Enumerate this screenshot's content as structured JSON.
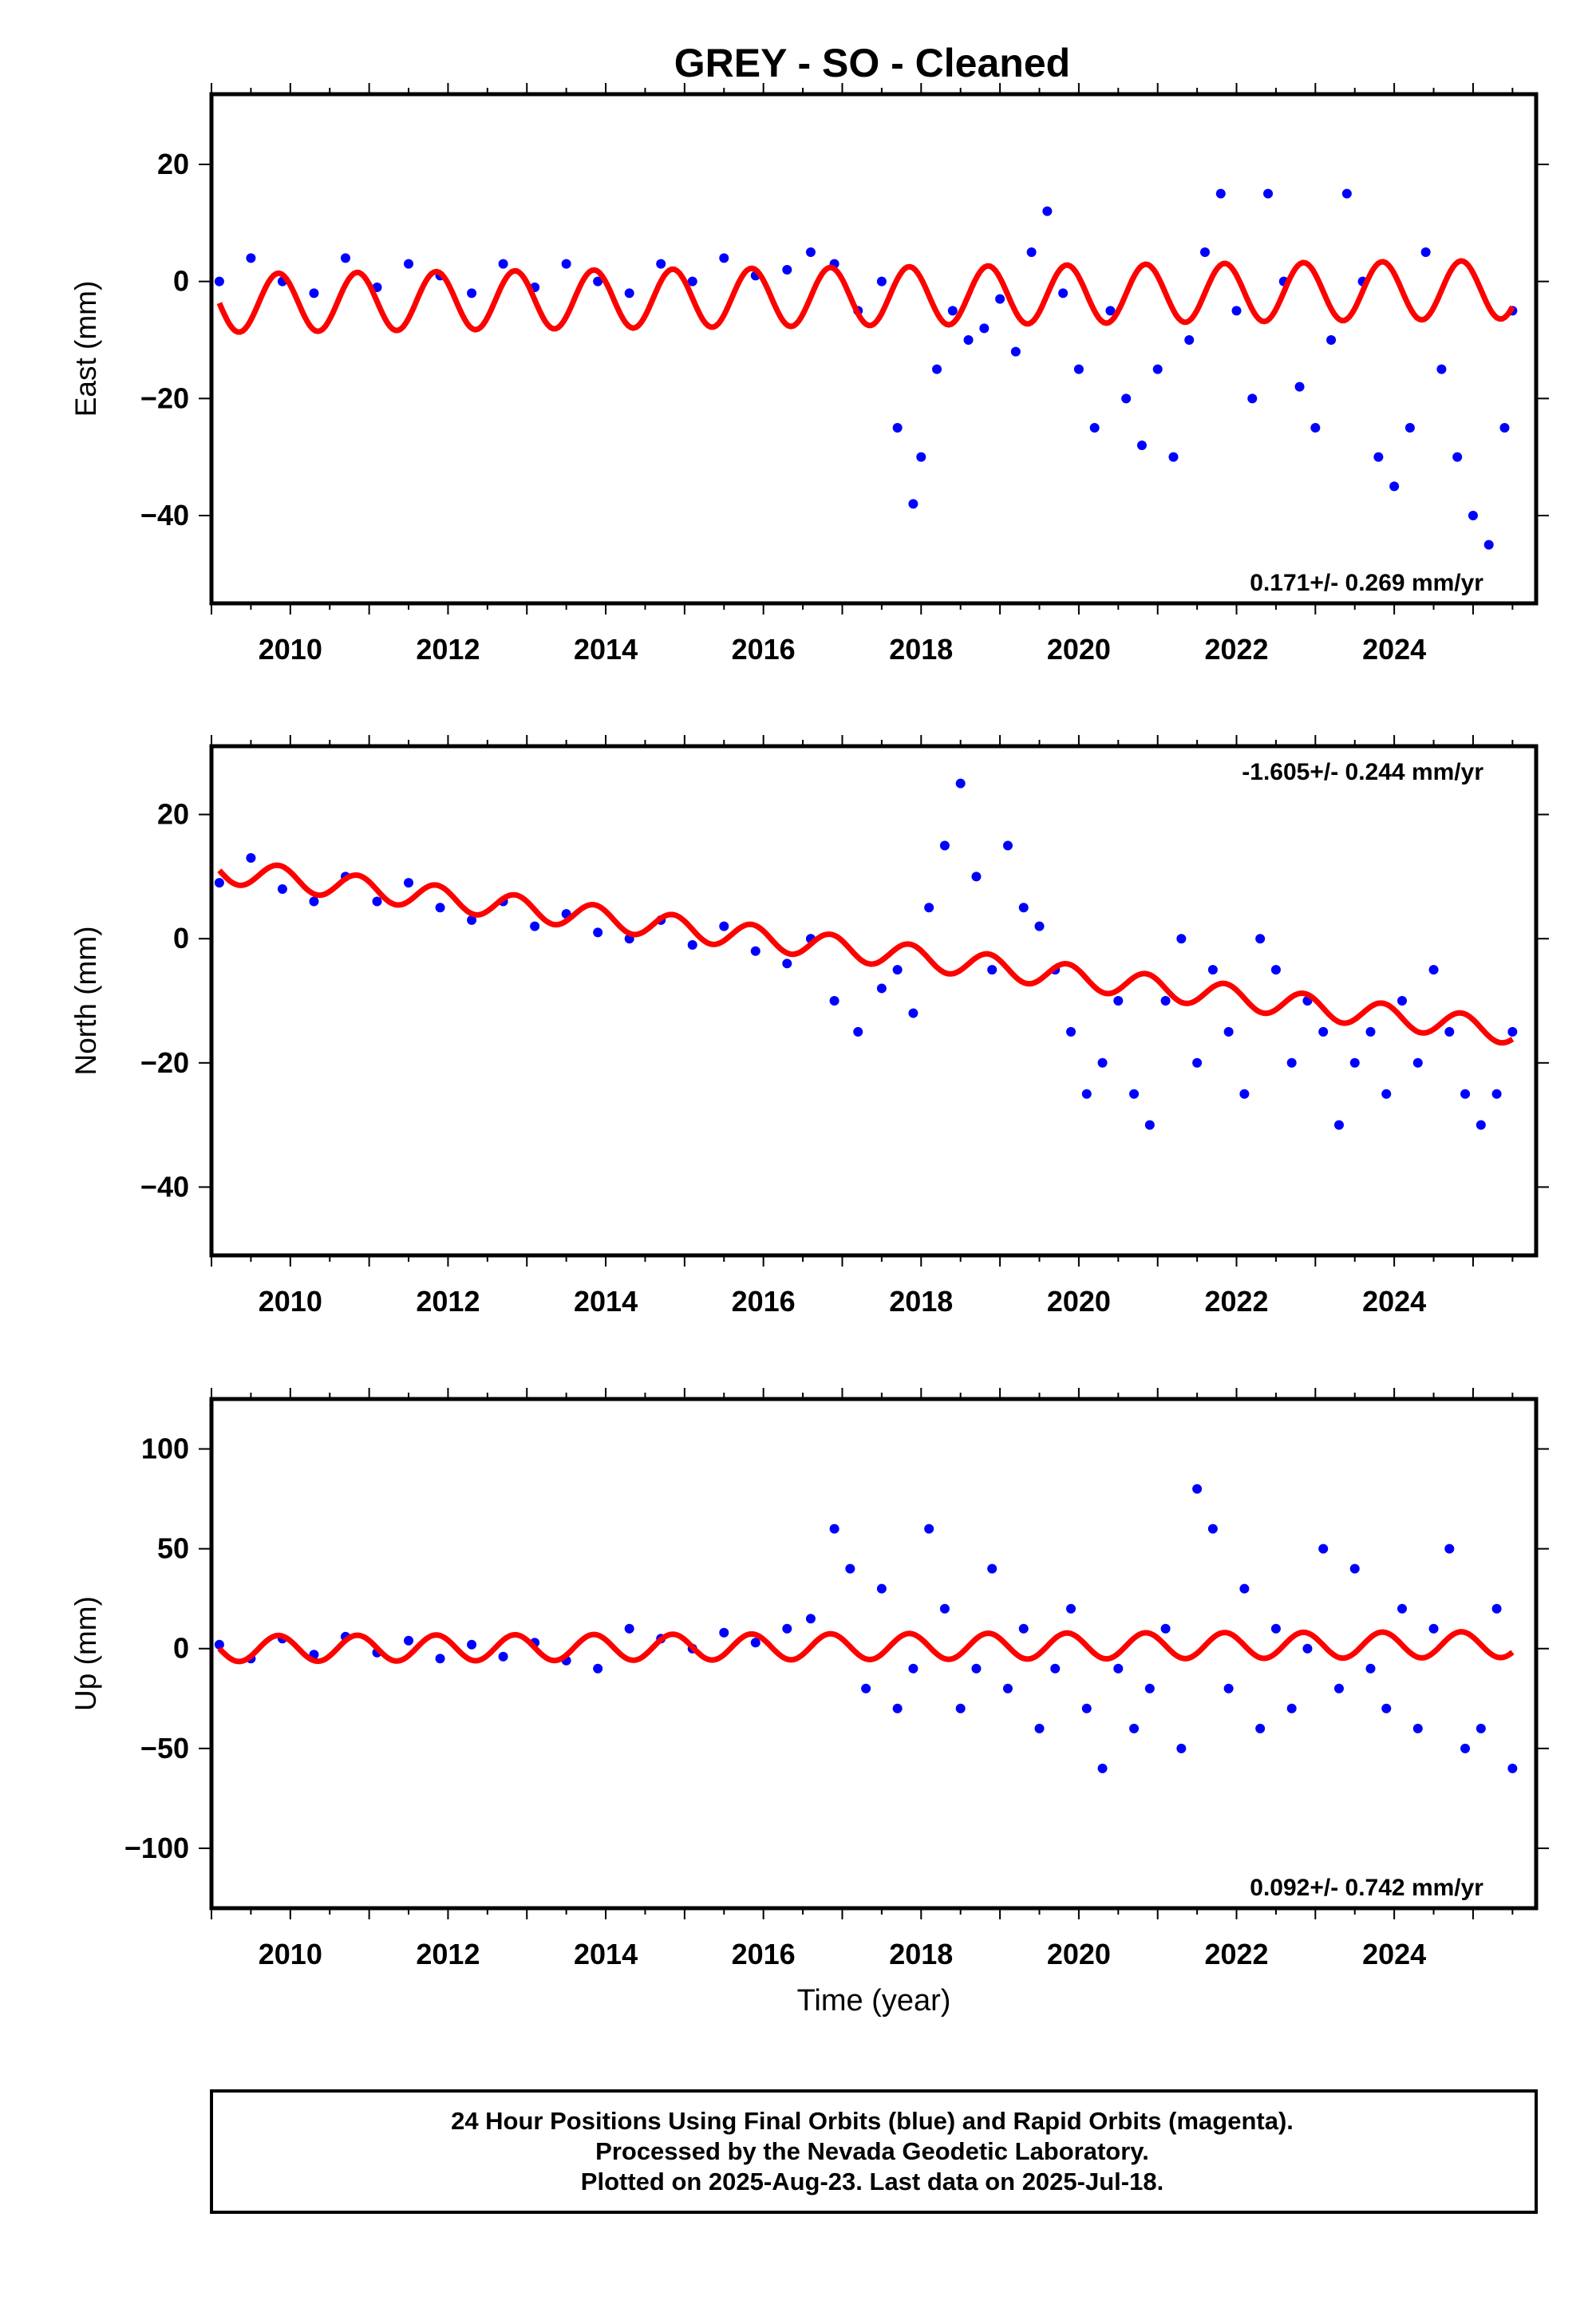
{
  "title": "GREY  - SO - Cleaned",
  "footer": {
    "line1": "24 Hour Positions Using Final Orbits (blue) and Rapid Orbits (magenta).",
    "line2": "Processed by the Nevada Geodetic Laboratory.",
    "line3": "Plotted on 2025-Aug-23. Last data on 2025-Jul-18."
  },
  "colors": {
    "data": "#0000ff",
    "model": "#ff0000",
    "frame": "#000000"
  },
  "chart_data": [
    {
      "type": "scatter",
      "component": "east",
      "ylabel": "East (mm)",
      "xlabel": "",
      "xlim": [
        2009.0,
        2025.8
      ],
      "ylim": [
        -55,
        32
      ],
      "xticks": [
        2010,
        2012,
        2014,
        2016,
        2018,
        2020,
        2022,
        2024
      ],
      "yticks": [
        20,
        0,
        -20,
        -40
      ],
      "rate_text": "0.171+/- 0.269 mm/yr",
      "rate_position": "bottom-right",
      "series": [
        {
          "kind": "points",
          "x": [
            2009.1,
            2009.5,
            2009.9,
            2010.3,
            2010.7,
            2011.1,
            2011.5,
            2011.9,
            2012.3,
            2012.7,
            2013.1,
            2013.5,
            2013.9,
            2014.3,
            2014.7,
            2015.1,
            2015.5,
            2015.9,
            2016.3,
            2016.6,
            2016.9,
            2017.2,
            2017.5,
            2017.7,
            2017.9,
            2018.0,
            2018.2,
            2018.4,
            2018.6,
            2018.8,
            2019.0,
            2019.2,
            2019.4,
            2019.6,
            2019.8,
            2020.0,
            2020.2,
            2020.4,
            2020.6,
            2020.8,
            2021.0,
            2021.2,
            2021.4,
            2021.6,
            2021.8,
            2022.0,
            2022.2,
            2022.4,
            2022.6,
            2022.8,
            2023.0,
            2023.2,
            2023.4,
            2023.6,
            2023.8,
            2024.0,
            2024.2,
            2024.4,
            2024.6,
            2024.8,
            2025.0,
            2025.2,
            2025.4,
            2025.5
          ],
          "y": [
            0,
            4,
            0,
            -2,
            4,
            -1,
            3,
            1,
            -2,
            3,
            -1,
            3,
            0,
            -2,
            3,
            0,
            4,
            1,
            2,
            5,
            3,
            -5,
            0,
            -25,
            -38,
            -30,
            -15,
            -5,
            -10,
            -8,
            -3,
            -12,
            5,
            12,
            -2,
            -15,
            -25,
            -5,
            -20,
            -28,
            -15,
            -30,
            -10,
            5,
            15,
            -5,
            -20,
            15,
            0,
            -18,
            -25,
            -10,
            15,
            0,
            -30,
            -35,
            -25,
            5,
            -15,
            -30,
            -40,
            -45,
            -25,
            -5
          ]
        },
        {
          "kind": "model",
          "trend_start": -3.7,
          "trend_end": -1.4,
          "amplitude": 5.0,
          "phase": 0.6
        }
      ]
    },
    {
      "type": "scatter",
      "component": "north",
      "ylabel": "North (mm)",
      "xlabel": "",
      "xlim": [
        2009.0,
        2025.8
      ],
      "ylim": [
        -51,
        31
      ],
      "xticks": [
        2010,
        2012,
        2014,
        2016,
        2018,
        2020,
        2022,
        2024
      ],
      "yticks": [
        20,
        0,
        -20,
        -40
      ],
      "rate_text": "-1.605+/- 0.244 mm/yr",
      "rate_position": "top-right",
      "series": [
        {
          "kind": "points",
          "x": [
            2009.1,
            2009.5,
            2009.9,
            2010.3,
            2010.7,
            2011.1,
            2011.5,
            2011.9,
            2012.3,
            2012.7,
            2013.1,
            2013.5,
            2013.9,
            2014.3,
            2014.7,
            2015.1,
            2015.5,
            2015.9,
            2016.3,
            2016.6,
            2016.9,
            2017.2,
            2017.5,
            2017.7,
            2017.9,
            2018.1,
            2018.3,
            2018.5,
            2018.7,
            2018.9,
            2019.1,
            2019.3,
            2019.5,
            2019.7,
            2019.9,
            2020.1,
            2020.3,
            2020.5,
            2020.7,
            2020.9,
            2021.1,
            2021.3,
            2021.5,
            2021.7,
            2021.9,
            2022.1,
            2022.3,
            2022.5,
            2022.7,
            2022.9,
            2023.1,
            2023.3,
            2023.5,
            2023.7,
            2023.9,
            2024.1,
            2024.3,
            2024.5,
            2024.7,
            2024.9,
            2025.1,
            2025.3,
            2025.5
          ],
          "y": [
            9,
            13,
            8,
            6,
            10,
            6,
            9,
            5,
            3,
            6,
            2,
            4,
            1,
            0,
            3,
            -1,
            2,
            -2,
            -4,
            0,
            -10,
            -15,
            -8,
            -5,
            -12,
            5,
            15,
            25,
            10,
            -5,
            15,
            5,
            2,
            -5,
            -15,
            -25,
            -20,
            -10,
            -25,
            -30,
            -10,
            0,
            -20,
            -5,
            -15,
            -25,
            0,
            -5,
            -20,
            -10,
            -15,
            -30,
            -20,
            -15,
            -25,
            -10,
            -20,
            -5,
            -15,
            -25,
            -30,
            -25,
            -15
          ]
        },
        {
          "kind": "model",
          "trend_start": 11.0,
          "trend_end": -15.0,
          "amplitude": 2.0,
          "phase": 0.6
        }
      ]
    },
    {
      "type": "scatter",
      "component": "up",
      "ylabel": "Up (mm)",
      "xlabel": "Time (year)",
      "xlim": [
        2009.0,
        2025.8
      ],
      "ylim": [
        -130,
        125
      ],
      "xticks": [
        2010,
        2012,
        2014,
        2016,
        2018,
        2020,
        2022,
        2024
      ],
      "yticks": [
        100,
        50,
        0,
        -50,
        -100
      ],
      "rate_text": "0.092+/- 0.742 mm/yr",
      "rate_position": "bottom-right",
      "series": [
        {
          "kind": "points",
          "x": [
            2009.1,
            2009.5,
            2009.9,
            2010.3,
            2010.7,
            2011.1,
            2011.5,
            2011.9,
            2012.3,
            2012.7,
            2013.1,
            2013.5,
            2013.9,
            2014.3,
            2014.7,
            2015.1,
            2015.5,
            2015.9,
            2016.3,
            2016.6,
            2016.9,
            2017.1,
            2017.3,
            2017.5,
            2017.7,
            2017.9,
            2018.1,
            2018.3,
            2018.5,
            2018.7,
            2018.9,
            2019.1,
            2019.3,
            2019.5,
            2019.7,
            2019.9,
            2020.1,
            2020.3,
            2020.5,
            2020.7,
            2020.9,
            2021.1,
            2021.3,
            2021.5,
            2021.7,
            2021.9,
            2022.1,
            2022.3,
            2022.5,
            2022.7,
            2022.9,
            2023.1,
            2023.3,
            2023.5,
            2023.7,
            2023.9,
            2024.1,
            2024.3,
            2024.5,
            2024.7,
            2024.9,
            2025.1,
            2025.3,
            2025.5
          ],
          "y": [
            2,
            -5,
            5,
            -3,
            6,
            -2,
            4,
            -5,
            2,
            -4,
            3,
            -6,
            -10,
            10,
            5,
            0,
            8,
            3,
            10,
            15,
            60,
            40,
            -20,
            30,
            -30,
            -10,
            60,
            20,
            -30,
            -10,
            40,
            -20,
            10,
            -40,
            -10,
            20,
            -30,
            -60,
            -10,
            -40,
            -20,
            10,
            -50,
            80,
            60,
            -20,
            30,
            -40,
            10,
            -30,
            0,
            50,
            -20,
            40,
            -10,
            -30,
            20,
            -40,
            10,
            50,
            -50,
            -40,
            20,
            -60
          ]
        },
        {
          "kind": "model",
          "trend_start": 0.0,
          "trend_end": 2.0,
          "amplitude": 6.5,
          "phase": 0.6
        }
      ]
    }
  ]
}
